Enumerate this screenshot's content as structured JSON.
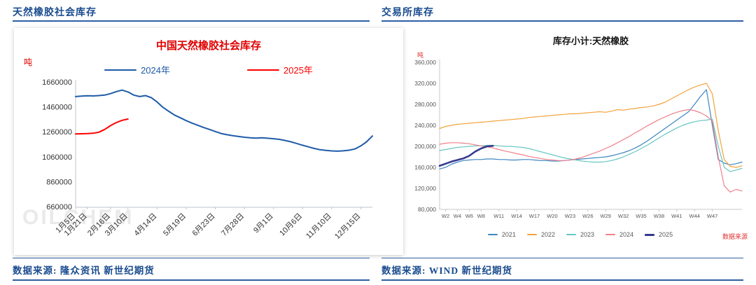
{
  "page": {
    "left_panel_header": "天然橡胶社会库存",
    "right_panel_header": "交易所库存",
    "left_footer": "数据来源: 隆众资讯  新世纪期货",
    "right_footer": "数据来源: WIND  新世纪期货",
    "watermark": "OILCHEM",
    "source_note": "数据来源"
  },
  "colors": {
    "header_blue": "#1A4C8F",
    "rule_blue": "#2E5FA3",
    "left_title_red": "#E00000",
    "series_2024_left": "#1F5BA8",
    "series_2025_left": "#FF0000",
    "series_2021": "#3C86C0",
    "series_2022": "#F2A33C",
    "series_2023": "#66C7C2",
    "series_2024": "#F0808A",
    "series_2025": "#35398E"
  },
  "chart_data": [
    {
      "type": "line",
      "title": "中国天然橡胶社会库存",
      "ylabel": "吨",
      "ylim": [
        660000,
        1660000
      ],
      "grid": false,
      "legend_position": "top",
      "yticks": [
        {
          "v": 1660000,
          "label": "1660000"
        },
        {
          "v": 1460000,
          "label": "1460000"
        },
        {
          "v": 1260000,
          "label": "1260000"
        },
        {
          "v": 1060000,
          "label": "1060000"
        },
        {
          "v": 860000,
          "label": "860000"
        },
        {
          "v": 660000,
          "label": "660000"
        }
      ],
      "n_points": 52,
      "xticks": [
        {
          "i": 0,
          "label": "1月5日"
        },
        {
          "i": 2,
          "label": "1月21日"
        },
        {
          "i": 6,
          "label": "2月16日"
        },
        {
          "i": 9,
          "label": "3月10日"
        },
        {
          "i": 14,
          "label": "4月14日"
        },
        {
          "i": 19,
          "label": "5月19日"
        },
        {
          "i": 24,
          "label": "6月23日"
        },
        {
          "i": 29,
          "label": "7月28日"
        },
        {
          "i": 34,
          "label": "9月1日"
        },
        {
          "i": 39,
          "label": "10月6日"
        },
        {
          "i": 44,
          "label": "11月10日"
        },
        {
          "i": 49,
          "label": "12月15日"
        }
      ],
      "series": [
        {
          "name": "2024年",
          "color": "#1F5BA8",
          "width": 2,
          "values": [
            1548000,
            1552000,
            1555000,
            1553000,
            1556000,
            1560000,
            1572000,
            1588000,
            1600000,
            1585000,
            1560000,
            1548000,
            1556000,
            1540000,
            1505000,
            1462000,
            1430000,
            1400000,
            1378000,
            1355000,
            1335000,
            1318000,
            1300000,
            1285000,
            1268000,
            1252000,
            1242000,
            1235000,
            1228000,
            1222000,
            1218000,
            1215000,
            1218000,
            1214000,
            1210000,
            1205000,
            1196000,
            1185000,
            1172000,
            1158000,
            1145000,
            1132000,
            1122000,
            1116000,
            1112000,
            1110000,
            1113000,
            1118000,
            1128000,
            1152000,
            1185000,
            1232000
          ]
        },
        {
          "name": "2025年",
          "color": "#FF0000",
          "width": 2,
          "values": [
            1248000,
            1250000,
            1251000,
            1254000,
            1262000,
            1285000,
            1315000,
            1340000,
            1358000,
            1368000
          ]
        }
      ]
    },
    {
      "type": "line",
      "title": "库存小计:天然橡胶",
      "ylabel": "吨",
      "ylim": [
        80000,
        360000
      ],
      "grid": false,
      "legend_position": "bottom",
      "yticks": [
        {
          "v": 360000,
          "label": "360,000"
        },
        {
          "v": 320000,
          "label": "320,000"
        },
        {
          "v": 280000,
          "label": "280,000"
        },
        {
          "v": 240000,
          "label": "240,000"
        },
        {
          "v": 200000,
          "label": "200,000"
        },
        {
          "v": 160000,
          "label": "160,000"
        },
        {
          "v": 120000,
          "label": "120,000"
        },
        {
          "v": 80000,
          "label": "80,000"
        }
      ],
      "n_points": 52,
      "xticks": [
        {
          "i": 1,
          "label": "W2"
        },
        {
          "i": 3,
          "label": "W4"
        },
        {
          "i": 5,
          "label": "W6"
        },
        {
          "i": 7,
          "label": "W8"
        },
        {
          "i": 10,
          "label": "W11"
        },
        {
          "i": 13,
          "label": "W14"
        },
        {
          "i": 16,
          "label": "W17"
        },
        {
          "i": 19,
          "label": "W20"
        },
        {
          "i": 22,
          "label": "W23"
        },
        {
          "i": 25,
          "label": "W26"
        },
        {
          "i": 28,
          "label": "W29"
        },
        {
          "i": 31,
          "label": "W32"
        },
        {
          "i": 34,
          "label": "W35"
        },
        {
          "i": 37,
          "label": "W38"
        },
        {
          "i": 40,
          "label": "W41"
        },
        {
          "i": 43,
          "label": "W44"
        },
        {
          "i": 46,
          "label": "W47"
        }
      ],
      "series": [
        {
          "name": "2021",
          "color": "#3C86C0",
          "width": 1.2,
          "values": [
            157000,
            160000,
            166000,
            170000,
            173000,
            174000,
            175000,
            175000,
            176000,
            176000,
            175000,
            175000,
            174000,
            174000,
            175000,
            175000,
            174000,
            173000,
            173000,
            172000,
            172000,
            173000,
            174000,
            175000,
            176000,
            177000,
            178000,
            179000,
            180000,
            182000,
            185000,
            188000,
            192000,
            197000,
            203000,
            210000,
            218000,
            226000,
            234000,
            242000,
            250000,
            258000,
            266000,
            280000,
            295000,
            308000,
            240000,
            175000,
            168000,
            165000,
            167000,
            170000
          ]
        },
        {
          "name": "2022",
          "color": "#F2A33C",
          "width": 1.2,
          "values": [
            234000,
            238000,
            240000,
            242000,
            243000,
            244000,
            245000,
            246000,
            247000,
            248000,
            249000,
            250000,
            251000,
            252000,
            253000,
            255000,
            256000,
            257000,
            258000,
            259000,
            260000,
            261000,
            262000,
            262000,
            263000,
            264000,
            265000,
            266000,
            265000,
            267000,
            270000,
            269000,
            271000,
            272000,
            274000,
            275000,
            277000,
            280000,
            284000,
            290000,
            296000,
            302000,
            308000,
            313000,
            317000,
            320000,
            300000,
            230000,
            175000,
            162000,
            160000,
            163000
          ]
        },
        {
          "name": "2023",
          "color": "#66C7C2",
          "width": 1.2,
          "values": [
            192000,
            194000,
            196000,
            198000,
            199000,
            200000,
            201000,
            201000,
            202000,
            202000,
            201000,
            200000,
            200000,
            199000,
            198000,
            196000,
            193000,
            190000,
            187000,
            184000,
            181000,
            178000,
            176000,
            174000,
            172000,
            171000,
            170000,
            170000,
            171000,
            173000,
            176000,
            180000,
            185000,
            190000,
            196000,
            202000,
            209000,
            216000,
            223000,
            229000,
            235000,
            240000,
            244000,
            247000,
            249000,
            250000,
            252000,
            200000,
            160000,
            152000,
            155000,
            158000
          ]
        },
        {
          "name": "2024",
          "color": "#F0808A",
          "width": 1.2,
          "values": [
            204000,
            206000,
            207000,
            207000,
            206000,
            205000,
            203000,
            201000,
            199000,
            197000,
            194000,
            191000,
            189000,
            186000,
            184000,
            181000,
            179000,
            177000,
            175000,
            174000,
            173000,
            173000,
            174000,
            176000,
            179000,
            183000,
            187000,
            191000,
            196000,
            201000,
            207000,
            213000,
            219000,
            226000,
            232000,
            239000,
            245000,
            251000,
            256000,
            261000,
            265000,
            268000,
            270000,
            268000,
            264000,
            258000,
            248000,
            180000,
            125000,
            113000,
            118000,
            115000
          ]
        },
        {
          "name": "2025",
          "color": "#35398E",
          "width": 2.6,
          "values": [
            163000,
            167000,
            171000,
            174000,
            177000,
            182000,
            190000,
            196000,
            200000,
            201000
          ]
        }
      ]
    }
  ]
}
